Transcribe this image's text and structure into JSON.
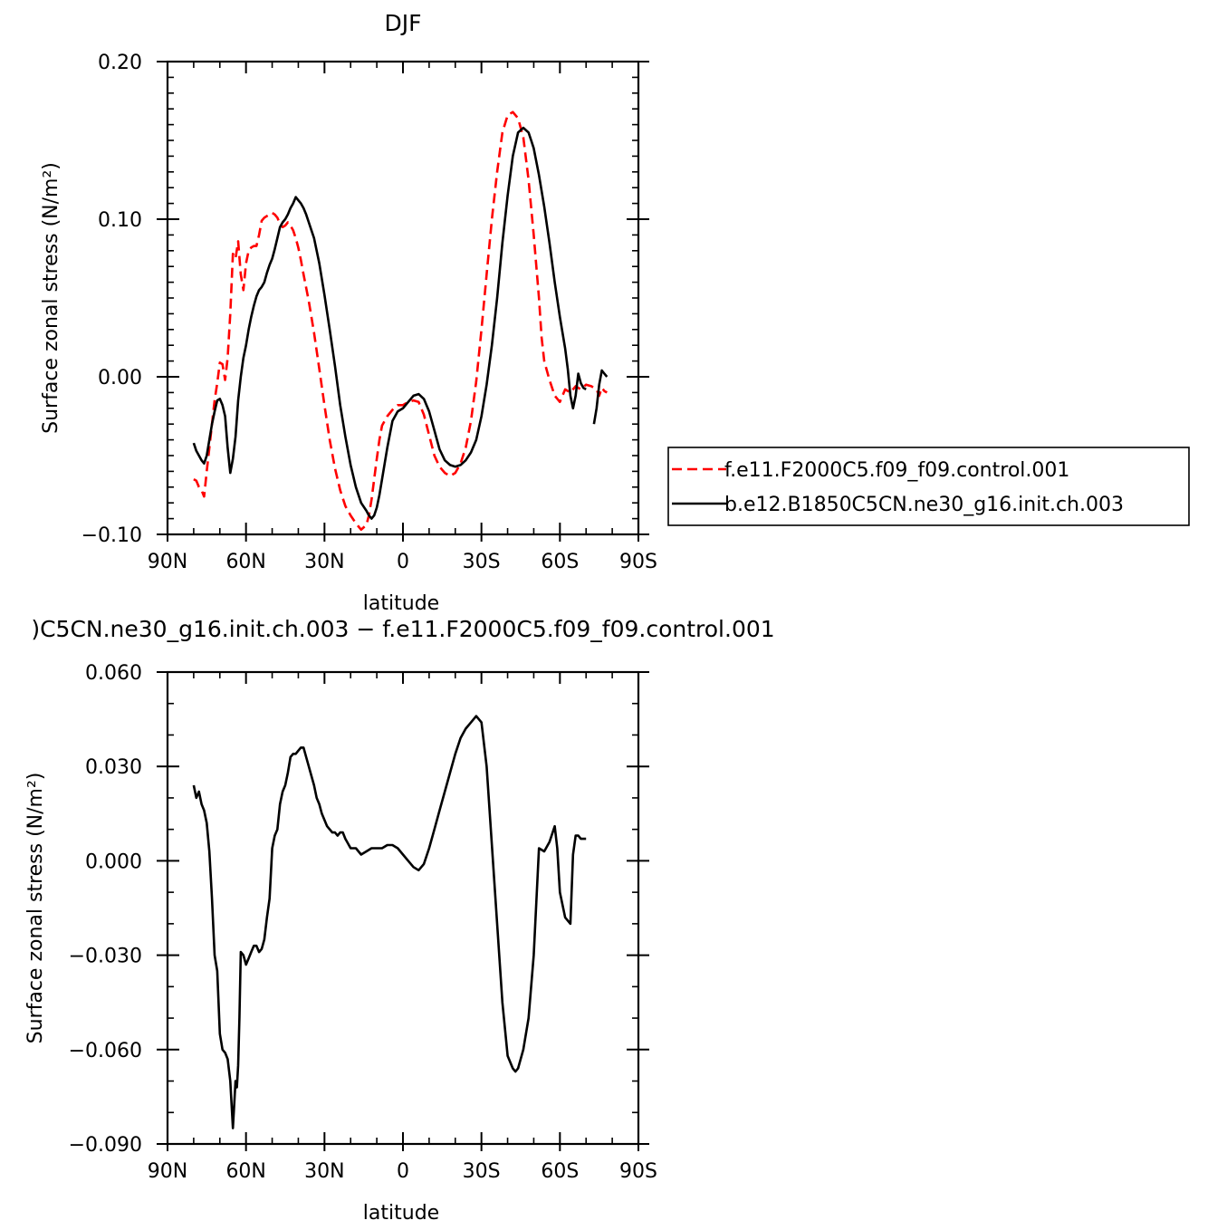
{
  "chart_data": [
    {
      "type": "line",
      "title": "DJF",
      "xlabel": "latitude",
      "ylabel": "Surface zonal stress (N/m²)",
      "xlim": [
        90,
        -90
      ],
      "ylim": [
        -0.1,
        0.2
      ],
      "x_ticks": [
        90,
        60,
        30,
        0,
        -30,
        -60,
        -90
      ],
      "x_tick_labels": [
        "90N",
        "60N",
        "30N",
        "0",
        "30S",
        "60S",
        "90S"
      ],
      "y_ticks": [
        -0.1,
        0.0,
        0.1,
        0.2
      ],
      "y_tick_labels": [
        "−0.10",
        "0.00",
        "0.10",
        "0.20"
      ],
      "legend_position": "right",
      "series": [
        {
          "name": "f.e11.F2000C5.f09_f09.control.001",
          "color": "#ff0000",
          "dash": "dashed",
          "x": [
            80,
            79,
            78,
            77,
            76,
            75,
            74,
            73,
            72,
            71,
            70,
            69,
            68,
            67,
            66,
            65,
            64,
            63,
            62,
            61,
            60,
            59,
            58,
            57,
            56,
            55,
            54,
            53,
            52,
            51,
            50,
            49,
            48,
            47,
            46,
            45,
            44,
            43,
            42,
            41,
            40,
            39,
            38,
            36,
            34,
            32,
            30,
            28,
            26,
            24,
            22,
            20,
            18,
            16,
            14,
            13,
            12,
            11,
            10,
            9,
            8,
            6,
            4,
            2,
            0,
            -2,
            -4,
            -6,
            -8,
            -10,
            -12,
            -14,
            -16,
            -18,
            -20,
            -22,
            -24,
            -26,
            -28,
            -30,
            -32,
            -34,
            -36,
            -38,
            -40,
            -42,
            -44,
            -46,
            -48,
            -50,
            -52,
            -53,
            -54,
            -56,
            -58,
            -60,
            -62,
            -64,
            -66,
            -68,
            -70,
            -72,
            -74,
            -75,
            -76,
            -77,
            -78
          ],
          "y": [
            -0.065,
            -0.066,
            -0.07,
            -0.072,
            -0.076,
            -0.06,
            -0.045,
            -0.03,
            -0.015,
            -0.004,
            0.009,
            0.008,
            -0.002,
            0.012,
            0.04,
            0.078,
            0.075,
            0.086,
            0.065,
            0.055,
            0.072,
            0.08,
            0.082,
            0.083,
            0.083,
            0.09,
            0.099,
            0.101,
            0.102,
            0.103,
            0.104,
            0.103,
            0.101,
            0.097,
            0.095,
            0.096,
            0.098,
            0.096,
            0.093,
            0.088,
            0.082,
            0.074,
            0.065,
            0.048,
            0.028,
            0.005,
            -0.018,
            -0.04,
            -0.058,
            -0.072,
            -0.082,
            -0.088,
            -0.093,
            -0.097,
            -0.094,
            -0.088,
            -0.078,
            -0.065,
            -0.052,
            -0.04,
            -0.031,
            -0.025,
            -0.021,
            -0.018,
            -0.018,
            -0.016,
            -0.015,
            -0.016,
            -0.024,
            -0.037,
            -0.05,
            -0.057,
            -0.061,
            -0.063,
            -0.061,
            -0.055,
            -0.045,
            -0.028,
            -0.003,
            0.03,
            0.065,
            0.1,
            0.13,
            0.155,
            0.166,
            0.168,
            0.164,
            0.152,
            0.125,
            0.09,
            0.05,
            0.025,
            0.01,
            -0.002,
            -0.012,
            -0.016,
            -0.008,
            -0.01,
            -0.006,
            -0.008,
            -0.005,
            -0.006,
            -0.008,
            -0.012,
            -0.007,
            -0.009,
            -0.01
          ]
        },
        {
          "name": "b.e12.B1850C5CN.ne30_g16.init.ch.003",
          "color": "#000000",
          "dash": "solid",
          "x": [
            80,
            79,
            78,
            77,
            76,
            75,
            74,
            73,
            72,
            71,
            70,
            69,
            68,
            67,
            66,
            65,
            64,
            63,
            62,
            61,
            60,
            59,
            58,
            57,
            56,
            55,
            54,
            53,
            52,
            51,
            50,
            49,
            48,
            47,
            46,
            45,
            44,
            43,
            42,
            41,
            40,
            39,
            38,
            37,
            36,
            34,
            32,
            30,
            28,
            26,
            24,
            22,
            20,
            18,
            16,
            14,
            13,
            12,
            11,
            10,
            9,
            8,
            6,
            4,
            2,
            0,
            -2,
            -4,
            -6,
            -8,
            -10,
            -12,
            -14,
            -16,
            -18,
            -20,
            -22,
            -24,
            -26,
            -28,
            -30,
            -32,
            -34,
            -36,
            -38,
            -40,
            -42,
            -44,
            -46,
            -48,
            -49,
            -50,
            -52,
            -54,
            -56,
            -58,
            -60,
            -62,
            -63,
            -64,
            -65,
            -66,
            -67,
            -68,
            -69,
            -70
          ],
          "y": [
            -0.042,
            -0.047,
            -0.05,
            -0.053,
            -0.055,
            -0.05,
            -0.04,
            -0.03,
            -0.022,
            -0.015,
            -0.014,
            -0.018,
            -0.025,
            -0.045,
            -0.061,
            -0.052,
            -0.038,
            -0.015,
            0.0,
            0.012,
            0.02,
            0.03,
            0.038,
            0.045,
            0.051,
            0.055,
            0.057,
            0.06,
            0.066,
            0.071,
            0.075,
            0.081,
            0.088,
            0.095,
            0.098,
            0.1,
            0.103,
            0.107,
            0.11,
            0.114,
            0.112,
            0.11,
            0.107,
            0.103,
            0.098,
            0.088,
            0.072,
            0.052,
            0.03,
            0.007,
            -0.018,
            -0.038,
            -0.056,
            -0.07,
            -0.08,
            -0.085,
            -0.088,
            -0.09,
            -0.088,
            -0.083,
            -0.075,
            -0.065,
            -0.045,
            -0.028,
            -0.022,
            -0.02,
            -0.016,
            -0.012,
            -0.011,
            -0.014,
            -0.022,
            -0.034,
            -0.046,
            -0.053,
            -0.056,
            -0.057,
            -0.056,
            -0.053,
            -0.048,
            -0.04,
            -0.025,
            -0.005,
            0.02,
            0.05,
            0.085,
            0.115,
            0.14,
            0.155,
            0.158,
            0.155,
            0.15,
            0.145,
            0.128,
            0.108,
            0.085,
            0.06,
            0.038,
            0.018,
            0.005,
            -0.012,
            -0.02,
            -0.012,
            0.002,
            -0.004,
            -0.007,
            -0.008
          ]
        },
        {
          "name": "",
          "color": "#000000",
          "dash": "solid",
          "x": [
            -73,
            -74,
            -75,
            -76,
            -77,
            -78
          ],
          "y": [
            -0.03,
            -0.02,
            -0.005,
            0.004,
            0.002,
            0.0
          ]
        }
      ]
    },
    {
      "type": "line",
      "title": ")C5CN.ne30_g16.init.ch.003 − f.e11.F2000C5.f09_f09.control.001",
      "xlabel": "latitude",
      "ylabel": "Surface zonal stress (N/m²)",
      "xlim": [
        90,
        -90
      ],
      "ylim": [
        -0.09,
        0.06
      ],
      "x_ticks": [
        90,
        60,
        30,
        0,
        -30,
        -60,
        -90
      ],
      "x_tick_labels": [
        "90N",
        "60N",
        "30N",
        "0",
        "30S",
        "60S",
        "90S"
      ],
      "y_ticks": [
        -0.09,
        -0.06,
        -0.03,
        0.0,
        0.03,
        0.06
      ],
      "y_tick_labels": [
        "−0.090",
        "−0.060",
        "−0.030",
        "0.000",
        "0.030",
        "0.060"
      ],
      "series": [
        {
          "name": "",
          "color": "#000000",
          "dash": "solid",
          "x": [
            80,
            79,
            78,
            77,
            76,
            75,
            74,
            73,
            72,
            71,
            70,
            69,
            68,
            67,
            66,
            65,
            64,
            63.5,
            63,
            62.5,
            62,
            61,
            60,
            59,
            58,
            57,
            56,
            55,
            54,
            53,
            52,
            51,
            50,
            49,
            48,
            47,
            46,
            45,
            44,
            43,
            42,
            41,
            40,
            39,
            38,
            37,
            36,
            35,
            34,
            33,
            32,
            31,
            30,
            29,
            28,
            27,
            26,
            25,
            24,
            23,
            22,
            20,
            18,
            16,
            14,
            12,
            10,
            8,
            6,
            4,
            2,
            0,
            -2,
            -4,
            -6,
            -8,
            -10,
            -12,
            -14,
            -16,
            -18,
            -20,
            -22,
            -24,
            -26,
            -28,
            -30,
            -32,
            -34,
            -36,
            -38,
            -40,
            -42,
            -43,
            -44,
            -46,
            -48,
            -50,
            -52,
            -54,
            -56,
            -58,
            -59,
            -60,
            -62,
            -64,
            -65,
            -66,
            -67,
            -68,
            -69,
            -70
          ],
          "y": [
            0.024,
            0.02,
            0.022,
            0.018,
            0.016,
            0.012,
            0.003,
            -0.012,
            -0.03,
            -0.035,
            -0.055,
            -0.06,
            -0.061,
            -0.063,
            -0.07,
            -0.085,
            -0.07,
            -0.072,
            -0.065,
            -0.05,
            -0.029,
            -0.03,
            -0.033,
            -0.031,
            -0.029,
            -0.027,
            -0.027,
            -0.029,
            -0.028,
            -0.025,
            -0.018,
            -0.012,
            0.004,
            0.008,
            0.01,
            0.018,
            0.022,
            0.024,
            0.028,
            0.033,
            0.034,
            0.034,
            0.035,
            0.036,
            0.036,
            0.033,
            0.03,
            0.027,
            0.024,
            0.02,
            0.018,
            0.015,
            0.013,
            0.011,
            0.01,
            0.009,
            0.009,
            0.008,
            0.009,
            0.009,
            0.007,
            0.004,
            0.004,
            0.002,
            0.003,
            0.004,
            0.004,
            0.004,
            0.005,
            0.005,
            0.004,
            0.002,
            0.0,
            -0.002,
            -0.003,
            -0.001,
            0.004,
            0.01,
            0.016,
            0.022,
            0.028,
            0.034,
            0.039,
            0.042,
            0.044,
            0.046,
            0.044,
            0.03,
            0.005,
            -0.02,
            -0.045,
            -0.062,
            -0.066,
            -0.067,
            -0.066,
            -0.06,
            -0.05,
            -0.03,
            0.004,
            0.003,
            0.006,
            0.011,
            0.004,
            -0.01,
            -0.018,
            -0.02,
            0.002,
            0.008,
            0.008,
            0.007,
            0.007,
            0.007
          ]
        }
      ]
    }
  ],
  "legend": {
    "items": [
      {
        "label": "f.e11.F2000C5.f09_f09.control.001",
        "color": "#ff0000",
        "dash": "dashed"
      },
      {
        "label": "b.e12.B1850C5CN.ne30_g16.init.ch.003",
        "color": "#000000",
        "dash": "solid"
      }
    ]
  }
}
